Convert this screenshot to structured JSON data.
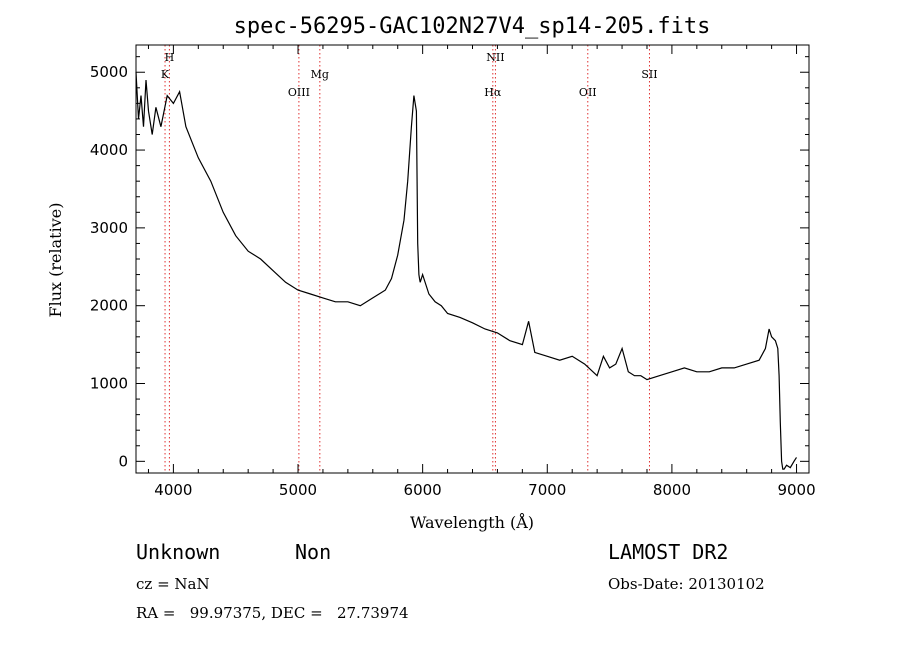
{
  "chart_data": {
    "type": "line",
    "title": "spec-56295-GAC102N27V4_sp14-205.fits",
    "xlabel": "Wavelength (Å)",
    "ylabel": "Flux (relative)",
    "xlim": [
      3700,
      9100
    ],
    "ylim": [
      -150,
      5350
    ],
    "xticks": [
      4000,
      5000,
      6000,
      7000,
      8000,
      9000
    ],
    "yticks": [
      0,
      1000,
      2000,
      3000,
      4000,
      5000
    ],
    "grid": false,
    "series": [
      {
        "x": [
          3700,
          3720,
          3740,
          3760,
          3780,
          3800,
          3830,
          3860,
          3900,
          3950,
          4000,
          4050,
          4100,
          4150,
          4200,
          4300,
          4400,
          4500,
          4600,
          4700,
          4800,
          4900,
          5000,
          5100,
          5200,
          5300,
          5400,
          5500,
          5600,
          5700,
          5750,
          5800,
          5850,
          5880,
          5910,
          5930,
          5950,
          5960,
          5970,
          5975,
          5980,
          6000,
          6050,
          6100,
          6150,
          6200,
          6300,
          6400,
          6500,
          6600,
          6700,
          6800,
          6850,
          6900,
          7000,
          7100,
          7200,
          7300,
          7400,
          7450,
          7500,
          7550,
          7600,
          7650,
          7700,
          7750,
          7800,
          7900,
          8000,
          8100,
          8200,
          8300,
          8400,
          8500,
          8600,
          8700,
          8750,
          8780,
          8800,
          8830,
          8850,
          8860,
          8870,
          8880,
          8890,
          8900,
          8920,
          8950,
          8980,
          9000
        ],
        "y": [
          5000,
          4400,
          4700,
          4300,
          4900,
          4500,
          4200,
          4550,
          4300,
          4700,
          4600,
          4750,
          4300,
          4100,
          3900,
          3600,
          3200,
          2900,
          2700,
          2600,
          2450,
          2300,
          2200,
          2150,
          2100,
          2050,
          2050,
          2000,
          2100,
          2200,
          2350,
          2650,
          3100,
          3600,
          4300,
          4700,
          4500,
          2800,
          2400,
          2350,
          2300,
          2400,
          2150,
          2050,
          2000,
          1900,
          1850,
          1780,
          1700,
          1650,
          1550,
          1500,
          1800,
          1400,
          1350,
          1300,
          1350,
          1250,
          1100,
          1350,
          1200,
          1250,
          1450,
          1150,
          1100,
          1100,
          1050,
          1100,
          1150,
          1200,
          1150,
          1150,
          1200,
          1200,
          1250,
          1300,
          1450,
          1700,
          1600,
          1550,
          1450,
          1100,
          500,
          0,
          -100,
          -100,
          -50,
          -80,
          0,
          50
        ]
      }
    ],
    "spectral_lines": [
      {
        "label": "H",
        "wavelength": 3968,
        "row": 1
      },
      {
        "label": "K",
        "wavelength": 3933,
        "row": 2
      },
      {
        "label": "OIII",
        "wavelength": 5007,
        "row": 3
      },
      {
        "label": "Mg",
        "wavelength": 5175,
        "row": 2
      },
      {
        "label": "NII",
        "wavelength": 6584,
        "row": 1
      },
      {
        "label": "Hα",
        "wavelength": 6563,
        "row": 3
      },
      {
        "label": "OII",
        "wavelength": 7325,
        "row": 3
      },
      {
        "label": "SII",
        "wavelength": 7820,
        "row": 2
      }
    ],
    "line_marker_color": "#e03030"
  },
  "footer": {
    "object_class": "Unknown",
    "subclass": "Non",
    "redshift": "cz = NaN",
    "coordinates": "RA =   99.97375, DEC =   27.73974",
    "survey": "LAMOST DR2",
    "obs_date": "Obs-Date: 20130102"
  }
}
